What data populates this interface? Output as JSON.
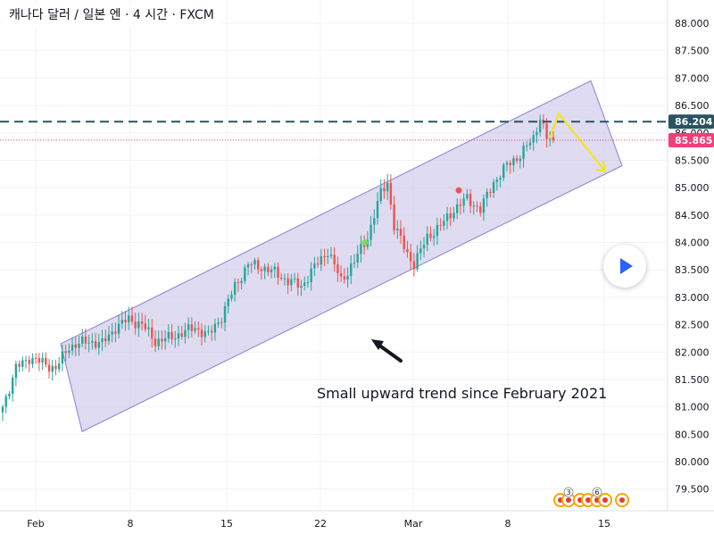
{
  "title": "캐나다 달러 / 일본 엔 · 4 시간 · FXCM",
  "annotation": "Small upward trend since February 2021",
  "colors": {
    "up": "#26a69a",
    "down": "#ef5350",
    "channel_fill": "#c5bde3",
    "channel_stroke": "#8a7fd4",
    "dashed_line": "#2a5360",
    "last_price": "#f23e7a",
    "projection": "#f5e50f",
    "grid": "#f0f3fa"
  },
  "chart_data": {
    "type": "candlestick",
    "symbol": "CAD/JPY",
    "timeframe": "4H",
    "x_ticks": [
      "Feb",
      "8",
      "15",
      "22",
      "Mar",
      "8",
      "15"
    ],
    "y_ticks": [
      "79.500",
      "80.000",
      "80.500",
      "81.000",
      "81.500",
      "82.000",
      "82.500",
      "83.000",
      "83.500",
      "84.000",
      "84.500",
      "85.000",
      "85.500",
      "86.000",
      "86.500",
      "87.000",
      "87.500",
      "88.000"
    ],
    "ylim": [
      79.2,
      88.2
    ],
    "close_anchors": [
      [
        0,
        81.0
      ],
      [
        4,
        81.7
      ],
      [
        8,
        81.9
      ],
      [
        12,
        81.8
      ],
      [
        16,
        81.7
      ],
      [
        20,
        82.1
      ],
      [
        26,
        82.2
      ],
      [
        30,
        82.15
      ],
      [
        34,
        82.45
      ],
      [
        38,
        82.6
      ],
      [
        42,
        82.5
      ],
      [
        46,
        82.2
      ],
      [
        50,
        82.25
      ],
      [
        54,
        82.35
      ],
      [
        58,
        82.45
      ],
      [
        62,
        82.3
      ],
      [
        66,
        82.65
      ],
      [
        70,
        83.2
      ],
      [
        74,
        83.6
      ],
      [
        78,
        83.55
      ],
      [
        82,
        83.45
      ],
      [
        86,
        83.3
      ],
      [
        90,
        83.2
      ],
      [
        94,
        83.55
      ],
      [
        98,
        83.85
      ],
      [
        102,
        83.3
      ],
      [
        106,
        83.65
      ],
      [
        110,
        84.1
      ],
      [
        114,
        84.9
      ],
      [
        116,
        85.1
      ],
      [
        118,
        84.3
      ],
      [
        122,
        83.8
      ],
      [
        124,
        83.6
      ],
      [
        128,
        84.1
      ],
      [
        132,
        84.3
      ],
      [
        136,
        84.6
      ],
      [
        140,
        84.8
      ],
      [
        144,
        84.6
      ],
      [
        148,
        85.1
      ],
      [
        152,
        85.4
      ],
      [
        156,
        85.6
      ],
      [
        160,
        85.9
      ],
      [
        162,
        86.3
      ],
      [
        164,
        85.9
      ],
      [
        166,
        85.865
      ]
    ],
    "candle_count": 167,
    "channel": {
      "upper": [
        [
          "Feb 2",
          82.15
        ],
        [
          "Mar 15",
          86.95
        ]
      ],
      "lower": [
        [
          "Feb 3",
          80.55
        ],
        [
          "Mar 16",
          85.4
        ]
      ]
    },
    "horizontal_level": 86.204,
    "last_price": 85.865,
    "price_labels": [
      "86.204",
      "85.865"
    ],
    "signals": [
      {
        "type": "buy",
        "price": 84.0
      },
      {
        "type": "sell",
        "price": 84.95
      }
    ],
    "projection_path": [
      [
        86.35
      ],
      [
        85.3
      ]
    ],
    "event_badges": [
      "3",
      "6"
    ]
  }
}
